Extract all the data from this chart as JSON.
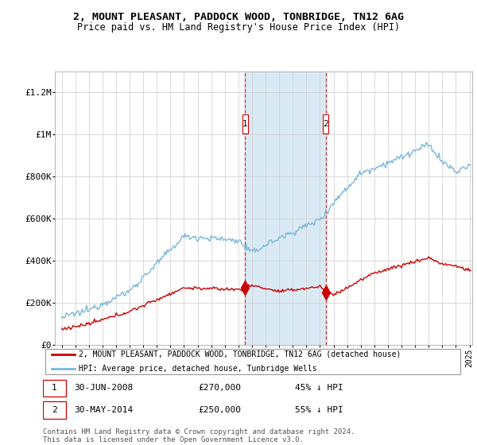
{
  "title1": "2, MOUNT PLEASANT, PADDOCK WOOD, TONBRIDGE, TN12 6AG",
  "title2": "Price paid vs. HM Land Registry's House Price Index (HPI)",
  "ylabel_ticks": [
    "£0",
    "£200K",
    "£400K",
    "£600K",
    "£800K",
    "£1M",
    "£1.2M"
  ],
  "ylim": [
    0,
    1300000
  ],
  "yticks": [
    0,
    200000,
    400000,
    600000,
    800000,
    1000000,
    1200000
  ],
  "sale1_date": 2008.5,
  "sale1_price": 270000,
  "sale2_date": 2014.42,
  "sale2_price": 250000,
  "hpi_color": "#7ab8d9",
  "sale_color": "#cc0000",
  "shade_color": "#daeaf5",
  "legend_line1": "2, MOUNT PLEASANT, PADDOCK WOOD, TONBRIDGE, TN12 6AG (detached house)",
  "legend_line2": "HPI: Average price, detached house, Tunbridge Wells",
  "footer": "Contains HM Land Registry data © Crown copyright and database right 2024.\nThis data is licensed under the Open Government Licence v3.0.",
  "xmin": 1995,
  "xmax": 2025
}
